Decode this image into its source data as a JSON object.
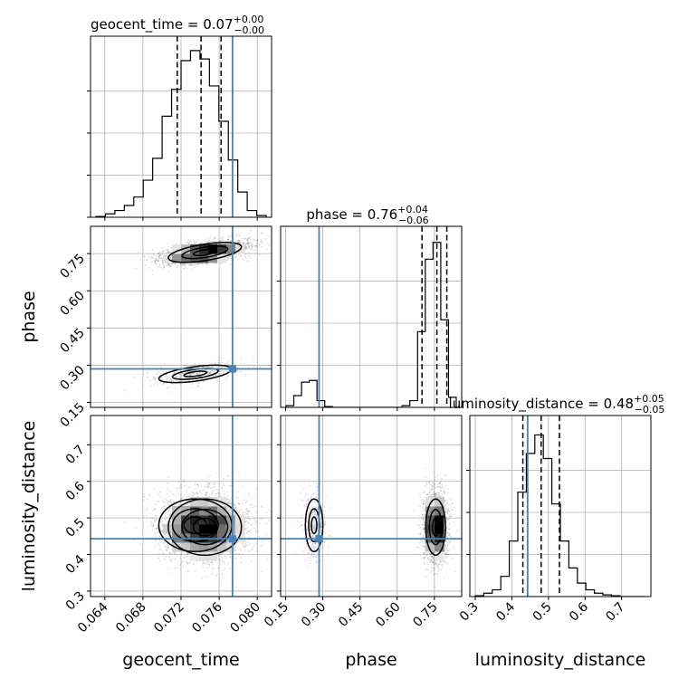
{
  "chart_data": {
    "type": "corner",
    "parameters": [
      {
        "name": "geocent_time",
        "axis_label": "geocent_time",
        "range": [
          0.0625,
          0.0815
        ],
        "ticks": [
          0.064,
          0.068,
          0.072,
          0.076,
          0.08
        ],
        "tick_labels": [
          "0.064",
          "0.068",
          "0.072",
          "0.076",
          "0.080"
        ],
        "truth": 0.0774,
        "quantiles": [
          0.0716,
          0.0741,
          0.0762
        ],
        "title": {
          "base": "geocent_time = 0.07",
          "sup": "+0.00",
          "sub": "−0.00"
        },
        "hist": [
          0.005,
          0.02,
          0.04,
          0.07,
          0.12,
          0.22,
          0.35,
          0.6,
          0.76,
          0.93,
          0.99,
          0.94,
          0.78,
          0.57,
          0.34,
          0.15,
          0.04,
          0.01
        ]
      },
      {
        "name": "phase",
        "axis_label": "phase",
        "range": [
          0.13,
          0.86
        ],
        "ticks": [
          0.15,
          0.3,
          0.45,
          0.6,
          0.75
        ],
        "tick_labels": [
          "0.15",
          "0.30",
          "0.45",
          "0.60",
          "0.75"
        ],
        "truth": 0.285,
        "quantiles": [
          0.7,
          0.76,
          0.8
        ],
        "title": {
          "base": "phase = 0.76",
          "sup": "+0.04",
          "sub": "−0.06"
        },
        "hist": [
          0.01,
          0.07,
          0.15,
          0.16,
          0.04,
          0.005,
          0,
          0,
          0,
          0,
          0,
          0,
          0,
          0,
          0,
          0.01,
          0.04,
          0.45,
          0.88,
          0.98,
          0.52,
          0.06
        ]
      },
      {
        "name": "luminosity_distance",
        "axis_label": "luminosity_distance",
        "range": [
          0.285,
          0.78
        ],
        "ticks": [
          0.3,
          0.4,
          0.5,
          0.6,
          0.7
        ],
        "tick_labels": [
          "0.3",
          "0.4",
          "0.5",
          "0.6",
          "0.7"
        ],
        "truth": 0.443,
        "quantiles": [
          0.43,
          0.48,
          0.53
        ],
        "title": {
          "base": "luminosity_distance = 0.48",
          "sup": "+0.05",
          "sub": "−0.05"
        },
        "hist": [
          0.005,
          0.02,
          0.04,
          0.12,
          0.33,
          0.62,
          0.85,
          0.96,
          0.82,
          0.55,
          0.33,
          0.17,
          0.08,
          0.04,
          0.02,
          0.01,
          0.005,
          0,
          0,
          0
        ]
      }
    ],
    "sample_modes": [
      {
        "weight": 0.82,
        "center": [
          0.0745,
          0.755,
          0.475
        ],
        "sd": [
          0.0024,
          0.025,
          0.048
        ]
      },
      {
        "weight": 0.18,
        "center": [
          0.0735,
          0.265,
          0.48
        ],
        "sd": [
          0.0024,
          0.022,
          0.045
        ]
      }
    ],
    "truth_color": "#4682b4",
    "grid": true,
    "legend": "none"
  }
}
